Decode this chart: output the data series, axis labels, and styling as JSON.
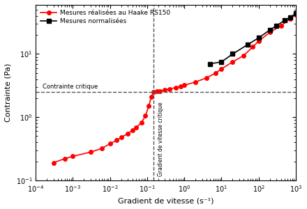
{
  "title": "",
  "xlabel": "Gradient de vitesse (s⁻¹)",
  "ylabel": "Contrainte (Pa)",
  "legend": [
    "Mesures réalisées au Haake RS150",
    "Mesures normalisées"
  ],
  "annotation_horizontal": "Contrainte critique",
  "annotation_vertical": "Gradient de vitesse critique",
  "critical_stress": 2.5,
  "critical_shear_rate": 0.15,
  "red_x": [
    0.0003,
    0.0006,
    0.001,
    0.003,
    0.006,
    0.01,
    0.015,
    0.02,
    0.03,
    0.04,
    0.05,
    0.07,
    0.09,
    0.11,
    0.13,
    0.15,
    0.18,
    0.22,
    0.3,
    0.4,
    0.6,
    0.8,
    1.0,
    2.0,
    4.0,
    7.0,
    10,
    20,
    40,
    70,
    100,
    200,
    400,
    700,
    1000
  ],
  "red_y": [
    0.19,
    0.22,
    0.24,
    0.28,
    0.32,
    0.38,
    0.43,
    0.48,
    0.55,
    0.62,
    0.68,
    0.82,
    1.05,
    1.5,
    2.1,
    2.5,
    2.55,
    2.6,
    2.7,
    2.8,
    2.95,
    3.1,
    3.2,
    3.6,
    4.2,
    5.0,
    5.8,
    7.5,
    9.5,
    13.0,
    16.0,
    22.0,
    28.0,
    36.0,
    42.0
  ],
  "black_x": [
    5.0,
    10.0,
    20.0,
    50.0,
    100,
    200,
    300,
    500,
    700,
    1000
  ],
  "black_y": [
    7.0,
    7.5,
    10.0,
    14.0,
    18.0,
    24.0,
    28.0,
    34.0,
    38.0,
    44.0
  ],
  "red_color": "#FF0000",
  "black_color": "#000000",
  "dashed_color": "#555555",
  "bg_color": "#FFFFFF",
  "xlim": [
    0.0001,
    1000.0
  ],
  "ylim": [
    0.1,
    60
  ]
}
